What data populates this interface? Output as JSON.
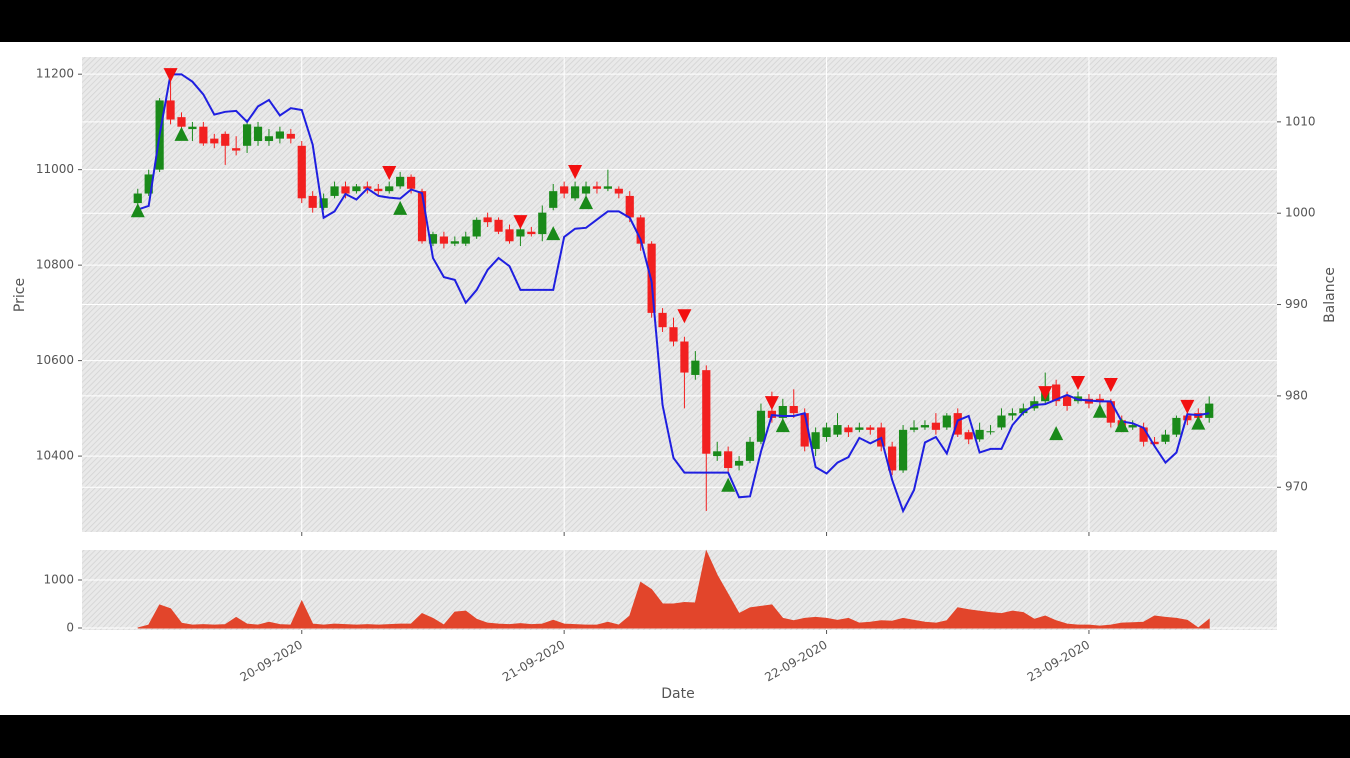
{
  "chart_data": [
    {
      "type": "candlestick",
      "ylabel": "Price",
      "y2label": "Balance",
      "up_color": "#1a8a1a",
      "down_color": "#f22020",
      "xlim": [
        -5.1,
        104.2
      ],
      "ylim": [
        10241,
        11236
      ],
      "yticks": [
        10400,
        10600,
        10800,
        11000,
        11200
      ],
      "y2lim": [
        965.1,
        1017.1
      ],
      "y2ticks": [
        970,
        980,
        990,
        1000,
        1010
      ],
      "grid": true,
      "open": [
        10930,
        10950,
        11000,
        11145,
        11110,
        11085,
        11090,
        11065,
        11075,
        11045,
        11050,
        11060,
        11060,
        11065,
        11075,
        11050,
        10945,
        10920,
        10945,
        10965,
        10955,
        10965,
        10960,
        10955,
        10965,
        10985,
        10955,
        10845,
        10860,
        10845,
        10845,
        10860,
        10900,
        10895,
        10875,
        10860,
        10870,
        10865,
        10920,
        10965,
        10940,
        10950,
        10965,
        10960,
        10960,
        10945,
        10900,
        10845,
        10700,
        10670,
        10640,
        10570,
        10580,
        10400,
        10410,
        10380,
        10390,
        10430,
        10495,
        10480,
        10505,
        10490,
        10415,
        10440,
        10445,
        10460,
        10455,
        10460,
        10460,
        10420,
        10370,
        10455,
        10460,
        10470,
        10460,
        10490,
        10450,
        10435,
        10450,
        10460,
        10485,
        10490,
        10500,
        10515,
        10550,
        10525,
        10515,
        10520,
        10520,
        10515,
        10475,
        10460,
        10460,
        10430,
        10430,
        10445,
        10485,
        10490,
        10480
      ],
      "high": [
        10960,
        11000,
        11150,
        11190,
        11120,
        11100,
        11100,
        11075,
        11080,
        11070,
        11105,
        11100,
        11085,
        11090,
        11085,
        11060,
        10955,
        10950,
        10975,
        10975,
        10970,
        10975,
        10970,
        10975,
        10995,
        10990,
        10960,
        10870,
        10870,
        10860,
        10870,
        10900,
        10910,
        10900,
        10885,
        10885,
        10880,
        10925,
        10970,
        10975,
        10975,
        10975,
        10975,
        11000,
        10965,
        10955,
        10905,
        10850,
        10710,
        10690,
        10650,
        10620,
        10590,
        10430,
        10420,
        10400,
        10440,
        10510,
        10535,
        10520,
        10540,
        10500,
        10460,
        10470,
        10490,
        10465,
        10470,
        10465,
        10470,
        10430,
        10465,
        10475,
        10475,
        10490,
        10490,
        10500,
        10455,
        10470,
        10465,
        10500,
        10500,
        10510,
        10525,
        10575,
        10560,
        10535,
        10535,
        10530,
        10530,
        10520,
        10485,
        10475,
        10470,
        10440,
        10455,
        10485,
        10495,
        10500,
        10525
      ],
      "low": [
        10915,
        10945,
        10995,
        11095,
        11080,
        11060,
        11050,
        11045,
        11010,
        11030,
        11035,
        11050,
        11050,
        11055,
        11055,
        10930,
        10910,
        10915,
        10940,
        10940,
        10950,
        10950,
        10945,
        10950,
        10960,
        10950,
        10845,
        10840,
        10835,
        10840,
        10840,
        10855,
        10880,
        10865,
        10845,
        10840,
        10860,
        10850,
        10915,
        10940,
        10935,
        10945,
        10950,
        10955,
        10940,
        10890,
        10830,
        10690,
        10660,
        10630,
        10500,
        10560,
        10285,
        10390,
        10365,
        10370,
        10385,
        10425,
        10470,
        10475,
        10480,
        10410,
        10400,
        10430,
        10440,
        10440,
        10450,
        10445,
        10410,
        10360,
        10365,
        10450,
        10455,
        10445,
        10455,
        10440,
        10425,
        10430,
        10445,
        10455,
        10475,
        10485,
        10495,
        10510,
        10505,
        10495,
        10510,
        10500,
        10505,
        10460,
        10450,
        10455,
        10420,
        10420,
        10425,
        10440,
        10465,
        10470,
        10470
      ],
      "close": [
        10950,
        10990,
        11145,
        11105,
        11090,
        11090,
        11055,
        11055,
        11050,
        11040,
        11095,
        11090,
        11070,
        11080,
        11065,
        10940,
        10920,
        10940,
        10965,
        10950,
        10965,
        10960,
        10955,
        10965,
        10985,
        10960,
        10850,
        10865,
        10845,
        10850,
        10860,
        10895,
        10890,
        10870,
        10850,
        10875,
        10865,
        10910,
        10955,
        10950,
        10965,
        10965,
        10960,
        10965,
        10950,
        10900,
        10845,
        10700,
        10670,
        10640,
        10575,
        10600,
        10405,
        10410,
        10375,
        10390,
        10430,
        10495,
        10480,
        10505,
        10490,
        10420,
        10450,
        10460,
        10465,
        10450,
        10460,
        10455,
        10420,
        10370,
        10455,
        10460,
        10465,
        10455,
        10485,
        10445,
        10435,
        10455,
        10452,
        10485,
        10490,
        10500,
        10515,
        10545,
        10515,
        10505,
        10525,
        10510,
        10515,
        10470,
        10460,
        10465,
        10430,
        10425,
        10445,
        10480,
        10475,
        10480,
        10510
      ],
      "series": [
        {
          "color": "#1f1fe0",
          "axis": "y2",
          "values": [
            1000.4,
            1000.8,
            1008.6,
            1015.2,
            1015.2,
            1014.4,
            1013,
            1010.8,
            1011.1,
            1011.2,
            1010,
            1011.7,
            1012.4,
            1010.7,
            1011.5,
            1011.3,
            1007.5,
            999.5,
            1000.2,
            1002.1,
            1001.5,
            1002.7,
            1001.9,
            1001.7,
            1001.6,
            1002.6,
            1002.2,
            995.1,
            993,
            992.7,
            990.2,
            991.6,
            993.8,
            995.1,
            994.2,
            991.6,
            991.6,
            991.6,
            991.6,
            997.4,
            998.3,
            998.4,
            999.3,
            1000.2,
            1000.2,
            999.5,
            997.1,
            992.5,
            979,
            973.2,
            971.6,
            971.6,
            971.6,
            971.6,
            971.6,
            968.9,
            969,
            973.9,
            977.9,
            977.8,
            977.8,
            978.1,
            972.2,
            971.5,
            972.7,
            973.3,
            975.4,
            974.8,
            975.4,
            970.8,
            967.4,
            969.7,
            974.9,
            975.5,
            973.7,
            977.3,
            977.8,
            973.8,
            974.2,
            974.2,
            976.8,
            978.2,
            979,
            979.1,
            979.6,
            980.1,
            979.6,
            979.5,
            979.4,
            979.4,
            977.2,
            977,
            976.5,
            974.5,
            972.7,
            973.8,
            978,
            977.9,
            978.1
          ]
        }
      ],
      "buy_markers": {
        "color": "#1a8a1a",
        "x": [
          0,
          4,
          24,
          38,
          41,
          54,
          59,
          84,
          88,
          90,
          97
        ],
        "y": [
          10915,
          11075,
          10920,
          10867,
          10932,
          10340,
          10465,
          10448,
          10495,
          10465,
          10470
        ]
      },
      "sell_markers": {
        "color": "#f21010",
        "x": [
          3,
          23,
          35,
          40,
          50,
          58,
          83,
          86,
          89,
          96
        ],
        "y": [
          11198,
          10993,
          10890,
          10995,
          10693,
          10511,
          10532,
          10553,
          10549,
          10503
        ]
      }
    },
    {
      "type": "area",
      "xlabel": "Date",
      "color": "#e2452b",
      "xlim": [
        -5.1,
        104.2
      ],
      "xticks": [
        {
          "value": 15,
          "label": "20-09-2020"
        },
        {
          "value": 39,
          "label": "21-09-2020"
        },
        {
          "value": 63,
          "label": "22-09-2020"
        },
        {
          "value": 87,
          "label": "23-09-2020"
        }
      ],
      "ylim": [
        -42,
        1625
      ],
      "yticks": [
        0,
        1000
      ],
      "grid": true,
      "values": [
        0,
        60,
        480,
        400,
        100,
        60,
        70,
        60,
        70,
        220,
        80,
        60,
        120,
        70,
        60,
        560,
        80,
        60,
        80,
        70,
        60,
        70,
        60,
        70,
        80,
        80,
        300,
        200,
        60,
        330,
        350,
        180,
        100,
        80,
        70,
        90,
        70,
        80,
        160,
        80,
        70,
        60,
        60,
        120,
        60,
        250,
        950,
        800,
        500,
        500,
        530,
        520,
        1600,
        1100,
        700,
        300,
        420,
        450,
        480,
        200,
        150,
        200,
        220,
        200,
        160,
        200,
        100,
        120,
        150,
        140,
        200,
        160,
        120,
        100,
        150,
        420,
        380,
        350,
        320,
        300,
        350,
        320,
        180,
        250,
        150,
        80,
        60,
        60,
        40,
        60,
        100,
        110,
        120,
        250,
        220,
        200,
        160,
        0,
        180
      ]
    }
  ]
}
